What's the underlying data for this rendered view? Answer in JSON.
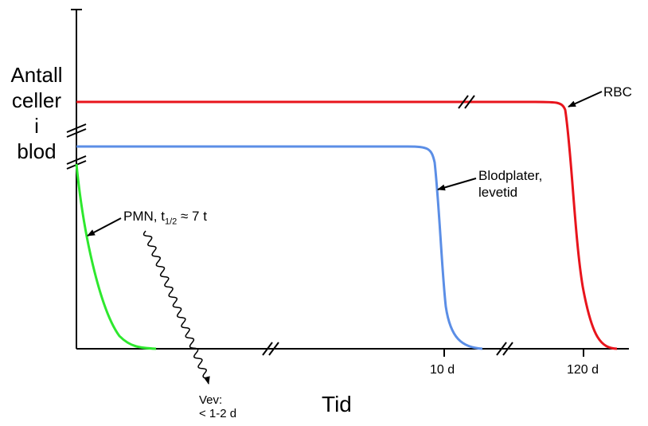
{
  "labels": {
    "y_axis_lines": [
      "Antall",
      "celler",
      "i",
      "blod"
    ],
    "x_axis": "Tid",
    "tick_10d": "10 d",
    "tick_120d": "120 d",
    "rbc": "RBC",
    "blodplater_line1": "Blodplater,",
    "blodplater_line2": "levetid",
    "pmn_prefix": "PMN, t",
    "pmn_subscript": "1/2",
    "pmn_suffix": " ≈ 7 t",
    "vev_line1": "Vev:",
    "vev_line2": "< 1-2 d"
  },
  "colors": {
    "rbc": "#e8141c",
    "blodplater": "#5b8ee6",
    "pmn": "#2ee82e",
    "axes": "#000000"
  }
}
